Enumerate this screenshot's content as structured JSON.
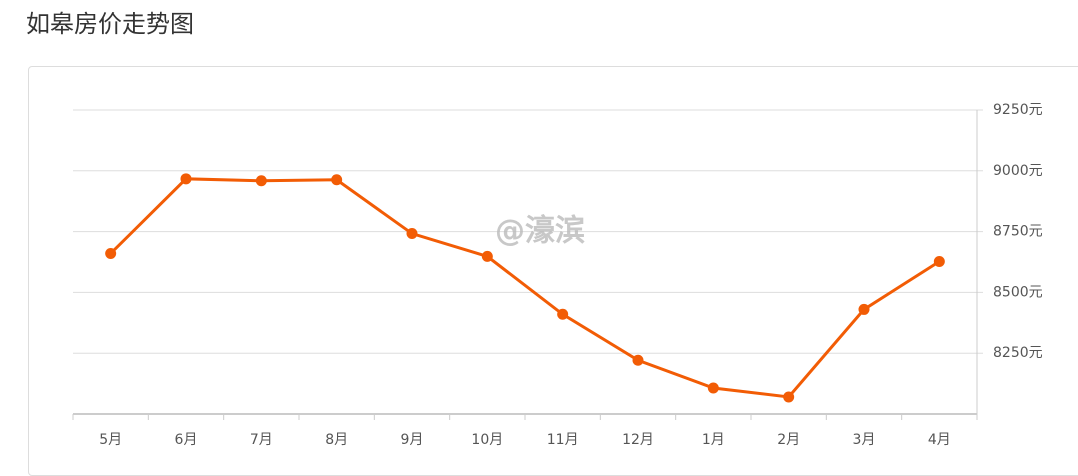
{
  "chart_data": {
    "type": "line",
    "title": "如皋房价走势图",
    "watermark": "@濠滨",
    "categories": [
      "5月",
      "6月",
      "7月",
      "8月",
      "9月",
      "10月",
      "11月",
      "12月",
      "1月",
      "2月",
      "3月",
      "4月"
    ],
    "series": [
      {
        "color": "#f25c05",
        "values": [
          8660,
          8967,
          8959,
          8963,
          8742,
          8648,
          8410,
          8221,
          8107,
          8070,
          8430,
          8627
        ]
      }
    ],
    "ylim": [
      8000,
      9250
    ],
    "yticks": [
      {
        "value": 8250,
        "label": "8250元"
      },
      {
        "value": 8500,
        "label": "8500元"
      },
      {
        "value": 8750,
        "label": "8750元"
      },
      {
        "value": 9000,
        "label": "9000元"
      },
      {
        "value": 9250,
        "label": "9250元"
      }
    ],
    "grid": true
  }
}
